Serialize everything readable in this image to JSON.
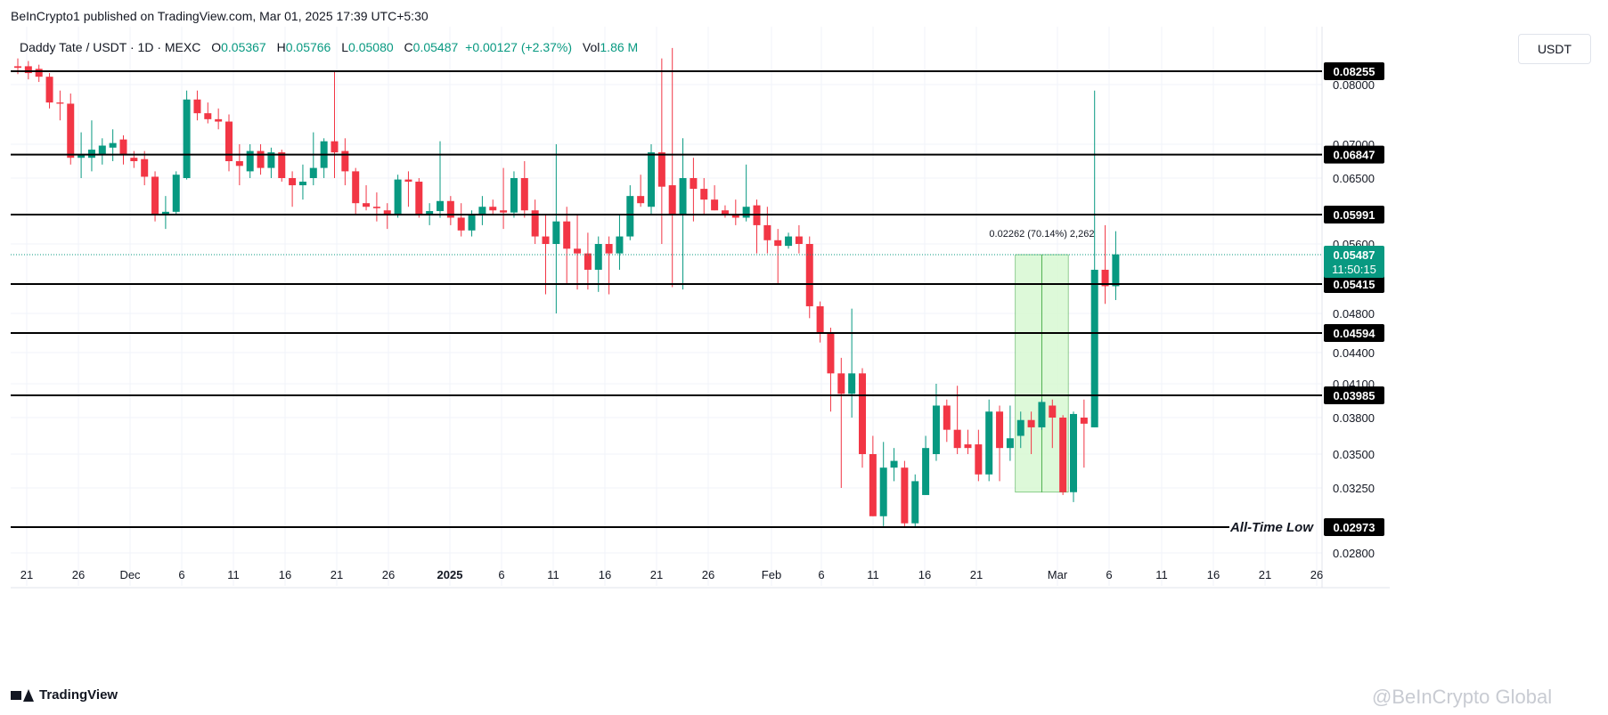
{
  "header": {
    "published_text": "BeInCrypto1 published on TradingView.com, Mar 01, 2025 17:39 UTC+5:30"
  },
  "legend": {
    "symbol": "Daddy Tate / USDT · 1D · MEXC",
    "open_label": "O",
    "open": "0.05367",
    "high_label": "H",
    "high": "0.05766",
    "low_label": "L",
    "low": "0.05080",
    "close_label": "C",
    "close": "0.05487",
    "change": "+0.00127 (+2.37%)",
    "volume_label": "Vol",
    "volume": "1.86 M"
  },
  "currency_button": "USDT",
  "footer": {
    "logo": "TradingView",
    "watermark": "@BeInCrypto Global"
  },
  "colors": {
    "up": "#089981",
    "down": "#f23645",
    "level_line": "#000000",
    "measure_fill": "#d4f8d0",
    "measure_line": "#4caf50"
  },
  "chart_data": {
    "type": "candlestick",
    "symbol": "Daddy Tate / USDT",
    "interval": "1D",
    "exchange": "MEXC",
    "x_tick_labels": [
      "21",
      "26",
      "Dec",
      "6",
      "11",
      "16",
      "21",
      "26",
      "2025",
      "6",
      "11",
      "16",
      "21",
      "26",
      "Feb",
      "6",
      "11",
      "16",
      "21",
      "Mar",
      "6",
      "11",
      "16",
      "21",
      "26"
    ],
    "y_tick_labels": [
      "0.08000",
      "0.07000",
      "0.06500",
      "0.05600",
      "0.04800",
      "0.04400",
      "0.04100",
      "0.03800",
      "0.03500",
      "0.03250",
      "0.02800"
    ],
    "y_ticks": [
      0.08,
      0.07,
      0.065,
      0.056,
      0.048,
      0.044,
      0.041,
      0.038,
      0.035,
      0.0325,
      0.028
    ],
    "current_price": {
      "label": "0.05487",
      "value": 0.05487,
      "countdown": "11:50:15"
    },
    "levels": [
      {
        "label": "0.08255",
        "value": 0.08255
      },
      {
        "label": "0.06847",
        "value": 0.06847
      },
      {
        "label": "0.05991",
        "value": 0.05991
      },
      {
        "label": "0.05415",
        "value": 0.05415
      },
      {
        "label": "0.04594",
        "value": 0.04594
      },
      {
        "label": "0.03985",
        "value": 0.03985
      },
      {
        "label": "0.02973",
        "value": 0.02973,
        "annotation": "All-Time Low"
      }
    ],
    "measure": {
      "text": "0.02262 (70.14%) 2,262",
      "from_value": 0.0322,
      "to_value": 0.05487,
      "start_index": 95,
      "end_index": 99
    },
    "candles": [
      {
        "o": 0.0835,
        "h": 0.085,
        "l": 0.082,
        "c": 0.0832
      },
      {
        "o": 0.0835,
        "h": 0.0845,
        "l": 0.081,
        "c": 0.0822
      },
      {
        "o": 0.083,
        "h": 0.0838,
        "l": 0.0805,
        "c": 0.0815
      },
      {
        "o": 0.0815,
        "h": 0.0822,
        "l": 0.076,
        "c": 0.077
      },
      {
        "o": 0.077,
        "h": 0.079,
        "l": 0.074,
        "c": 0.0768
      },
      {
        "o": 0.0768,
        "h": 0.0785,
        "l": 0.067,
        "c": 0.068
      },
      {
        "o": 0.068,
        "h": 0.072,
        "l": 0.065,
        "c": 0.0685
      },
      {
        "o": 0.068,
        "h": 0.074,
        "l": 0.066,
        "c": 0.0692
      },
      {
        "o": 0.0685,
        "h": 0.071,
        "l": 0.067,
        "c": 0.0698
      },
      {
        "o": 0.0695,
        "h": 0.0725,
        "l": 0.0675,
        "c": 0.0702
      },
      {
        "o": 0.0708,
        "h": 0.0715,
        "l": 0.067,
        "c": 0.0685
      },
      {
        "o": 0.068,
        "h": 0.069,
        "l": 0.0665,
        "c": 0.0675
      },
      {
        "o": 0.0678,
        "h": 0.069,
        "l": 0.064,
        "c": 0.0652
      },
      {
        "o": 0.0652,
        "h": 0.066,
        "l": 0.059,
        "c": 0.0598
      },
      {
        "o": 0.06,
        "h": 0.0625,
        "l": 0.058,
        "c": 0.0603
      },
      {
        "o": 0.0603,
        "h": 0.066,
        "l": 0.06,
        "c": 0.0655
      },
      {
        "o": 0.065,
        "h": 0.079,
        "l": 0.0648,
        "c": 0.0775
      },
      {
        "o": 0.0775,
        "h": 0.079,
        "l": 0.074,
        "c": 0.0752
      },
      {
        "o": 0.0752,
        "h": 0.077,
        "l": 0.0735,
        "c": 0.0742
      },
      {
        "o": 0.0742,
        "h": 0.076,
        "l": 0.0725,
        "c": 0.0738
      },
      {
        "o": 0.0738,
        "h": 0.075,
        "l": 0.066,
        "c": 0.0675
      },
      {
        "o": 0.0675,
        "h": 0.07,
        "l": 0.064,
        "c": 0.0668
      },
      {
        "o": 0.066,
        "h": 0.07,
        "l": 0.065,
        "c": 0.069
      },
      {
        "o": 0.069,
        "h": 0.07,
        "l": 0.0655,
        "c": 0.0665
      },
      {
        "o": 0.0665,
        "h": 0.0695,
        "l": 0.065,
        "c": 0.0688
      },
      {
        "o": 0.0688,
        "h": 0.0692,
        "l": 0.0645,
        "c": 0.065
      },
      {
        "o": 0.065,
        "h": 0.066,
        "l": 0.061,
        "c": 0.064
      },
      {
        "o": 0.064,
        "h": 0.067,
        "l": 0.062,
        "c": 0.0645
      },
      {
        "o": 0.065,
        "h": 0.072,
        "l": 0.064,
        "c": 0.0665
      },
      {
        "o": 0.0665,
        "h": 0.071,
        "l": 0.065,
        "c": 0.0705
      },
      {
        "o": 0.0705,
        "h": 0.0825,
        "l": 0.065,
        "c": 0.0688
      },
      {
        "o": 0.069,
        "h": 0.071,
        "l": 0.064,
        "c": 0.066
      },
      {
        "o": 0.066,
        "h": 0.0665,
        "l": 0.06,
        "c": 0.0615
      },
      {
        "o": 0.0615,
        "h": 0.064,
        "l": 0.0605,
        "c": 0.061
      },
      {
        "o": 0.061,
        "h": 0.063,
        "l": 0.059,
        "c": 0.0608
      },
      {
        "o": 0.0605,
        "h": 0.0615,
        "l": 0.058,
        "c": 0.06
      },
      {
        "o": 0.06,
        "h": 0.0655,
        "l": 0.0595,
        "c": 0.0648
      },
      {
        "o": 0.0648,
        "h": 0.066,
        "l": 0.061,
        "c": 0.0645
      },
      {
        "o": 0.0645,
        "h": 0.065,
        "l": 0.0595,
        "c": 0.06
      },
      {
        "o": 0.06,
        "h": 0.0615,
        "l": 0.0585,
        "c": 0.0604
      },
      {
        "o": 0.0604,
        "h": 0.0705,
        "l": 0.0595,
        "c": 0.0618
      },
      {
        "o": 0.0618,
        "h": 0.0625,
        "l": 0.0585,
        "c": 0.0595
      },
      {
        "o": 0.0595,
        "h": 0.0615,
        "l": 0.057,
        "c": 0.0578
      },
      {
        "o": 0.0578,
        "h": 0.0605,
        "l": 0.057,
        "c": 0.06
      },
      {
        "o": 0.06,
        "h": 0.0625,
        "l": 0.0585,
        "c": 0.061
      },
      {
        "o": 0.061,
        "h": 0.062,
        "l": 0.06,
        "c": 0.0605
      },
      {
        "o": 0.0605,
        "h": 0.0665,
        "l": 0.058,
        "c": 0.0602
      },
      {
        "o": 0.0602,
        "h": 0.066,
        "l": 0.0595,
        "c": 0.065
      },
      {
        "o": 0.065,
        "h": 0.0675,
        "l": 0.0595,
        "c": 0.0605
      },
      {
        "o": 0.0605,
        "h": 0.062,
        "l": 0.056,
        "c": 0.057
      },
      {
        "o": 0.057,
        "h": 0.06,
        "l": 0.052,
        "c": 0.056
      },
      {
        "o": 0.056,
        "h": 0.07,
        "l": 0.048,
        "c": 0.059
      },
      {
        "o": 0.059,
        "h": 0.061,
        "l": 0.054,
        "c": 0.0555
      },
      {
        "o": 0.0555,
        "h": 0.06,
        "l": 0.053,
        "c": 0.055
      },
      {
        "o": 0.055,
        "h": 0.0575,
        "l": 0.053,
        "c": 0.0545
      },
      {
        "o": 0.0545,
        "h": 0.057,
        "l": 0.0525,
        "c": 0.056
      },
      {
        "o": 0.056,
        "h": 0.057,
        "l": 0.052,
        "c": 0.055
      },
      {
        "o": 0.055,
        "h": 0.06,
        "l": 0.0545,
        "c": 0.057
      },
      {
        "o": 0.057,
        "h": 0.064,
        "l": 0.0565,
        "c": 0.0625
      },
      {
        "o": 0.0625,
        "h": 0.0655,
        "l": 0.061,
        "c": 0.0615
      },
      {
        "o": 0.061,
        "h": 0.07,
        "l": 0.06,
        "c": 0.0688
      },
      {
        "o": 0.0688,
        "h": 0.085,
        "l": 0.056,
        "c": 0.0638
      },
      {
        "o": 0.064,
        "h": 0.087,
        "l": 0.0535,
        "c": 0.06
      },
      {
        "o": 0.06,
        "h": 0.071,
        "l": 0.053,
        "c": 0.065
      },
      {
        "o": 0.065,
        "h": 0.068,
        "l": 0.059,
        "c": 0.0635
      },
      {
        "o": 0.0635,
        "h": 0.065,
        "l": 0.06,
        "c": 0.062
      },
      {
        "o": 0.062,
        "h": 0.064,
        "l": 0.0605,
        "c": 0.0605
      },
      {
        "o": 0.0605,
        "h": 0.0612,
        "l": 0.0595,
        "c": 0.06
      },
      {
        "o": 0.06,
        "h": 0.062,
        "l": 0.0585,
        "c": 0.0595
      },
      {
        "o": 0.0595,
        "h": 0.067,
        "l": 0.059,
        "c": 0.061
      },
      {
        "o": 0.0612,
        "h": 0.062,
        "l": 0.055,
        "c": 0.0585
      },
      {
        "o": 0.0585,
        "h": 0.061,
        "l": 0.055,
        "c": 0.0565
      },
      {
        "o": 0.0565,
        "h": 0.058,
        "l": 0.054,
        "c": 0.0558
      },
      {
        "o": 0.0558,
        "h": 0.0575,
        "l": 0.0555,
        "c": 0.057
      },
      {
        "o": 0.057,
        "h": 0.0585,
        "l": 0.055,
        "c": 0.056
      },
      {
        "o": 0.056,
        "h": 0.057,
        "l": 0.0475,
        "c": 0.0495
      },
      {
        "o": 0.0495,
        "h": 0.0505,
        "l": 0.045,
        "c": 0.046
      },
      {
        "o": 0.046,
        "h": 0.0465,
        "l": 0.0385,
        "c": 0.042
      },
      {
        "o": 0.042,
        "h": 0.0435,
        "l": 0.0325,
        "c": 0.04
      },
      {
        "o": 0.04,
        "h": 0.049,
        "l": 0.038,
        "c": 0.042
      },
      {
        "o": 0.042,
        "h": 0.0425,
        "l": 0.034,
        "c": 0.035
      },
      {
        "o": 0.035,
        "h": 0.0365,
        "l": 0.0305,
        "c": 0.0305
      },
      {
        "o": 0.0305,
        "h": 0.036,
        "l": 0.0298,
        "c": 0.034
      },
      {
        "o": 0.034,
        "h": 0.0355,
        "l": 0.033,
        "c": 0.0345
      },
      {
        "o": 0.034,
        "h": 0.0345,
        "l": 0.0297,
        "c": 0.03
      },
      {
        "o": 0.03,
        "h": 0.0335,
        "l": 0.0297,
        "c": 0.033
      },
      {
        "o": 0.032,
        "h": 0.0365,
        "l": 0.032,
        "c": 0.0355
      },
      {
        "o": 0.035,
        "h": 0.041,
        "l": 0.0345,
        "c": 0.039
      },
      {
        "o": 0.039,
        "h": 0.0395,
        "l": 0.036,
        "c": 0.037
      },
      {
        "o": 0.037,
        "h": 0.0408,
        "l": 0.035,
        "c": 0.0355
      },
      {
        "o": 0.0358,
        "h": 0.037,
        "l": 0.035,
        "c": 0.0355
      },
      {
        "o": 0.0358,
        "h": 0.037,
        "l": 0.033,
        "c": 0.0335
      },
      {
        "o": 0.0335,
        "h": 0.0395,
        "l": 0.033,
        "c": 0.0385
      },
      {
        "o": 0.0385,
        "h": 0.039,
        "l": 0.033,
        "c": 0.0355
      },
      {
        "o": 0.0355,
        "h": 0.039,
        "l": 0.0345,
        "c": 0.0363
      },
      {
        "o": 0.0365,
        "h": 0.0385,
        "l": 0.0355,
        "c": 0.0378
      },
      {
        "o": 0.0378,
        "h": 0.0385,
        "l": 0.035,
        "c": 0.0372
      },
      {
        "o": 0.0372,
        "h": 0.0395,
        "l": 0.037,
        "c": 0.0393
      },
      {
        "o": 0.039,
        "h": 0.0395,
        "l": 0.0355,
        "c": 0.038
      },
      {
        "o": 0.038,
        "h": 0.0382,
        "l": 0.032,
        "c": 0.0322
      },
      {
        "o": 0.0322,
        "h": 0.0385,
        "l": 0.0315,
        "c": 0.0383
      },
      {
        "o": 0.038,
        "h": 0.0395,
        "l": 0.034,
        "c": 0.0375
      },
      {
        "o": 0.0372,
        "h": 0.079,
        "l": 0.0372,
        "c": 0.0545
      },
      {
        "o": 0.0545,
        "h": 0.0585,
        "l": 0.05,
        "c": 0.0537
      },
      {
        "o": 0.0537,
        "h": 0.0577,
        "l": 0.0508,
        "c": 0.0549
      }
    ]
  }
}
